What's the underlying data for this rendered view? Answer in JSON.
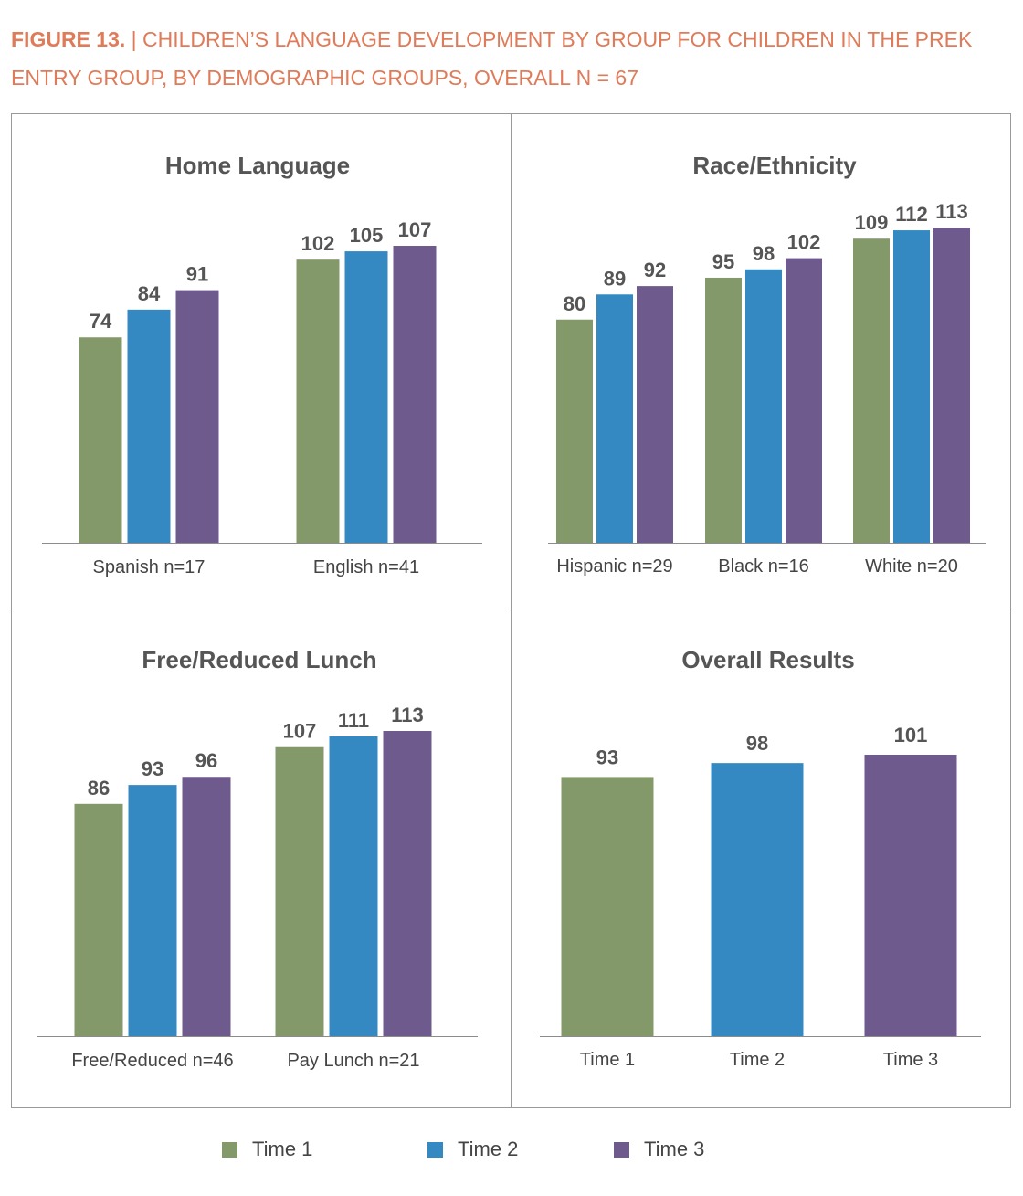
{
  "figure": {
    "title_bold": "FIGURE 13.",
    "title_sep": " | ",
    "title_line1": "CHILDREN’S LANGUAGE DEVELOPMENT BY GROUP FOR CHILDREN IN THE PREK",
    "title_line2": "ENTRY GROUP, BY DEMOGRAPHIC GROUPS, OVERALL N = 67"
  },
  "colors": {
    "time1": "#84996a",
    "time2": "#3589c2",
    "time3": "#6e5a8c"
  },
  "legend": [
    {
      "label": "Time 1",
      "color": "#84996a"
    },
    {
      "label": "Time 2",
      "color": "#3589c2"
    },
    {
      "label": "Time 3",
      "color": "#6e5a8c"
    }
  ],
  "chart_data": [
    {
      "type": "bar",
      "title": "Home Language",
      "categories": [
        "Spanish n=17",
        "English n=41"
      ],
      "series": [
        {
          "name": "Time 1",
          "values": [
            74,
            102
          ]
        },
        {
          "name": "Time 2",
          "values": [
            84,
            105
          ]
        },
        {
          "name": "Time 3",
          "values": [
            91,
            107
          ]
        }
      ],
      "ylim": [
        0,
        107
      ]
    },
    {
      "type": "bar",
      "title": "Race/Ethnicity",
      "categories": [
        "Hispanic n=29",
        "Black n=16",
        "White n=20"
      ],
      "series": [
        {
          "name": "Time 1",
          "values": [
            80,
            95,
            109
          ]
        },
        {
          "name": "Time 2",
          "values": [
            89,
            98,
            112
          ]
        },
        {
          "name": "Time 3",
          "values": [
            92,
            102,
            113
          ]
        }
      ],
      "ylim": [
        0,
        113
      ]
    },
    {
      "type": "bar",
      "title": "Free/Reduced Lunch",
      "categories": [
        "Free/Reduced n=46",
        "Pay Lunch n=21"
      ],
      "series": [
        {
          "name": "Time 1",
          "values": [
            86,
            107
          ]
        },
        {
          "name": "Time 2",
          "values": [
            93,
            111
          ]
        },
        {
          "name": "Time 3",
          "values": [
            96,
            113
          ]
        }
      ],
      "ylim": [
        0,
        113
      ]
    },
    {
      "type": "bar",
      "title": "Overall Results",
      "categories": [
        "Time 1",
        "Time 2",
        "Time 3"
      ],
      "series": [
        {
          "name": "",
          "values": [
            93,
            98,
            101
          ]
        }
      ],
      "colors_by_category": [
        "#84996a",
        "#3589c2",
        "#6e5a8c"
      ],
      "ylim": [
        0,
        101
      ]
    }
  ]
}
